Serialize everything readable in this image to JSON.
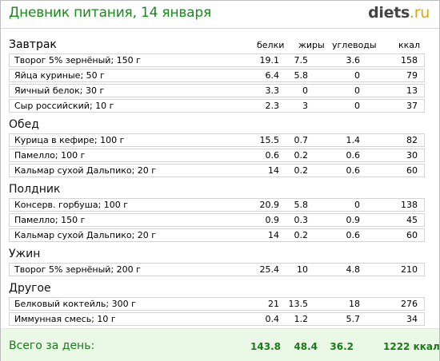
{
  "header": {
    "title": "Дневник питания, 14 января",
    "brand_name": "diets",
    "brand_tld": ".ru"
  },
  "columns": {
    "section_label": "Завтрак",
    "protein": "белки",
    "fat": "жиры",
    "carbs": "углеводы",
    "kcal": "ккал"
  },
  "sections": [
    {
      "title": "Завтрак",
      "rows": [
        {
          "name": "Творог 5% зернёный; 150 г",
          "protein": "19.1",
          "fat": "7.5",
          "carbs": "3.6",
          "kcal": "158"
        },
        {
          "name": "Яйца куриные; 50 г",
          "protein": "6.4",
          "fat": "5.8",
          "carbs": "0",
          "kcal": "79"
        },
        {
          "name": "Яичный белок; 30 г",
          "protein": "3.3",
          "fat": "0",
          "carbs": "0",
          "kcal": "13"
        },
        {
          "name": "Сыр российский; 10 г",
          "protein": "2.3",
          "fat": "3",
          "carbs": "0",
          "kcal": "37"
        }
      ]
    },
    {
      "title": "Обед",
      "rows": [
        {
          "name": "Курица в кефире; 100 г",
          "protein": "15.5",
          "fat": "0.7",
          "carbs": "1.4",
          "kcal": "82"
        },
        {
          "name": "Памелло; 100 г",
          "protein": "0.6",
          "fat": "0.2",
          "carbs": "0.6",
          "kcal": "30"
        },
        {
          "name": "Кальмар сухой Дальпико; 20 г",
          "protein": "14",
          "fat": "0.2",
          "carbs": "0.6",
          "kcal": "60"
        }
      ]
    },
    {
      "title": "Полдник",
      "rows": [
        {
          "name": "Консерв. горбуша; 100 г",
          "protein": "20.9",
          "fat": "5.8",
          "carbs": "0",
          "kcal": "138"
        },
        {
          "name": "Памелло; 150 г",
          "protein": "0.9",
          "fat": "0.3",
          "carbs": "0.9",
          "kcal": "45"
        },
        {
          "name": "Кальмар сухой Дальпико; 20 г",
          "protein": "14",
          "fat": "0.2",
          "carbs": "0.6",
          "kcal": "60"
        }
      ]
    },
    {
      "title": "Ужин",
      "rows": [
        {
          "name": "Творог 5% зернёный; 200 г",
          "protein": "25.4",
          "fat": "10",
          "carbs": "4.8",
          "kcal": "210"
        }
      ]
    },
    {
      "title": "Другое",
      "rows": [
        {
          "name": "Белковый коктейль; 300 г",
          "protein": "21",
          "fat": "13.5",
          "carbs": "18",
          "kcal": "276"
        },
        {
          "name": "Иммунная смесь; 10 г",
          "protein": "0.4",
          "fat": "1.2",
          "carbs": "5.7",
          "kcal": "34"
        }
      ]
    }
  ],
  "total": {
    "label": "Всего за день:",
    "protein": "143.8",
    "fat": "48.4",
    "carbs": "36.2",
    "kcal": "1222 ккал"
  },
  "colors": {
    "title_green": "#1a8a1a",
    "total_bg": "#eaf8e6",
    "brand_dark": "#444444",
    "brand_accent": "#e1a500"
  }
}
